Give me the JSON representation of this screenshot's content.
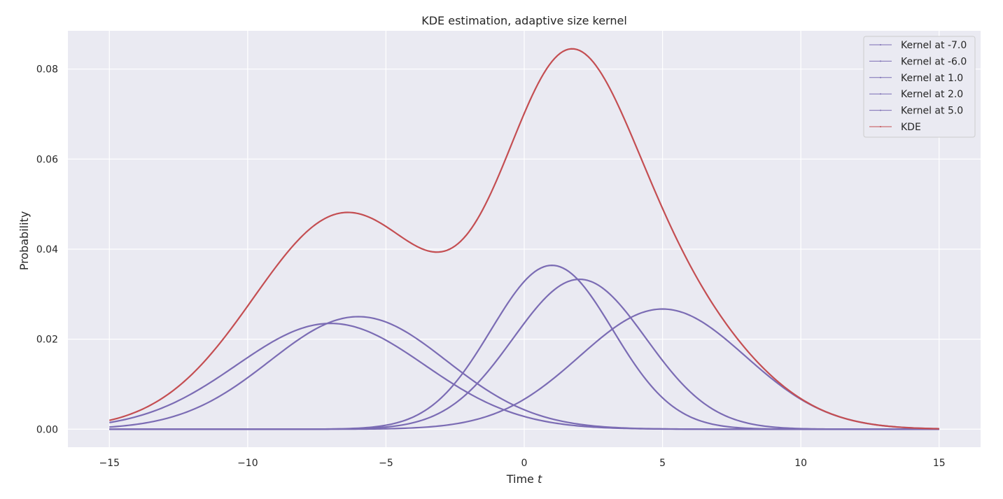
{
  "chart_data": {
    "type": "line",
    "title": "KDE estimation, adaptive size kernel",
    "xlabel": "Time",
    "xlabel_var": "t",
    "ylabel": "Probability",
    "xlim": [
      -16.5,
      16.5
    ],
    "ylim": [
      -0.004,
      0.0885
    ],
    "x_ticks": [
      -15,
      -10,
      -5,
      0,
      5,
      10,
      15
    ],
    "x_tick_labels": [
      "−15",
      "−10",
      "−5",
      "0",
      "5",
      "10",
      "15"
    ],
    "y_ticks": [
      0.0,
      0.02,
      0.04,
      0.06,
      0.08
    ],
    "y_tick_labels": [
      "0.00",
      "0.02",
      "0.04",
      "0.06",
      "0.08"
    ],
    "grid": true,
    "legend_position": "top-right",
    "x_range": [
      -15,
      15
    ],
    "series": [
      {
        "name": "Kernel at -7.0",
        "color": "#7b6cb4",
        "center": -7.0,
        "peak": 0.0235,
        "sigma": 3.4
      },
      {
        "name": "Kernel at -6.0",
        "color": "#7b6cb4",
        "center": -6.0,
        "peak": 0.025,
        "sigma": 3.2
      },
      {
        "name": "Kernel at 1.0",
        "color": "#7b6cb4",
        "center": 1.0,
        "peak": 0.0364,
        "sigma": 2.2
      },
      {
        "name": "Kernel at 2.0",
        "color": "#7b6cb4",
        "center": 2.0,
        "peak": 0.0333,
        "sigma": 2.4
      },
      {
        "name": "Kernel at 5.0",
        "color": "#7b6cb4",
        "center": 5.0,
        "peak": 0.0267,
        "sigma": 3.0
      },
      {
        "name": "KDE",
        "color": "#c44e52",
        "sum_of_kernels": true
      }
    ]
  },
  "colors": {
    "plot_background": "#eaeaf2",
    "grid": "#ffffff",
    "kernel": "#7b6cb4",
    "kde": "#c44e52"
  }
}
